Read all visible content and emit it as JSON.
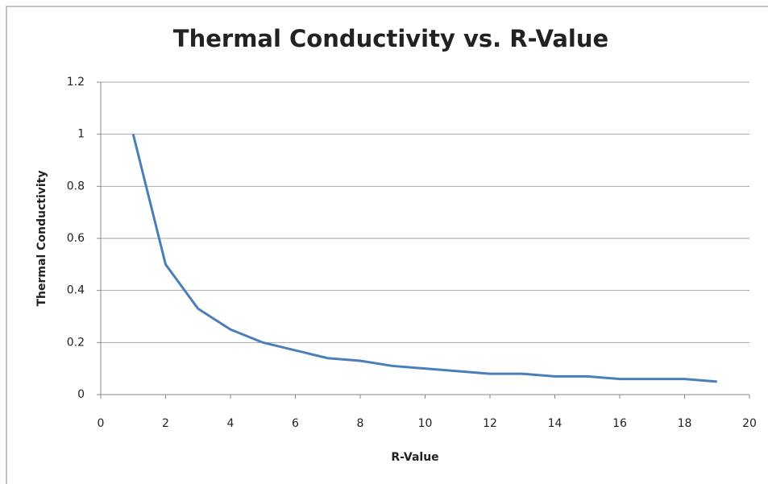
{
  "chart_data": {
    "type": "line",
    "title": "Thermal Conductivity vs. R-Value",
    "x_label": "R-Value",
    "y_label": "Thermal Conductivity",
    "x": [
      1,
      2,
      3,
      4,
      5,
      6,
      7,
      8,
      9,
      10,
      11,
      12,
      13,
      14,
      15,
      16,
      17,
      18,
      19
    ],
    "series": [
      {
        "name": "Thermal Conductivity",
        "color": "#4a7ebb",
        "values": [
          1,
          0.5,
          0.33,
          0.25,
          0.2,
          0.17,
          0.14,
          0.13,
          0.11,
          0.1,
          0.09,
          0.08,
          0.08,
          0.07,
          0.07,
          0.06,
          0.06,
          0.06,
          0.05
        ]
      }
    ],
    "xlim": [
      0,
      20
    ],
    "xticks": [
      0,
      2,
      4,
      6,
      8,
      10,
      12,
      14,
      16,
      18,
      20
    ],
    "ylim": [
      0,
      1.2
    ],
    "yticks": [
      0,
      0.2,
      0.4,
      0.6,
      0.8,
      1,
      1.2
    ],
    "grid": true,
    "legend": false
  }
}
